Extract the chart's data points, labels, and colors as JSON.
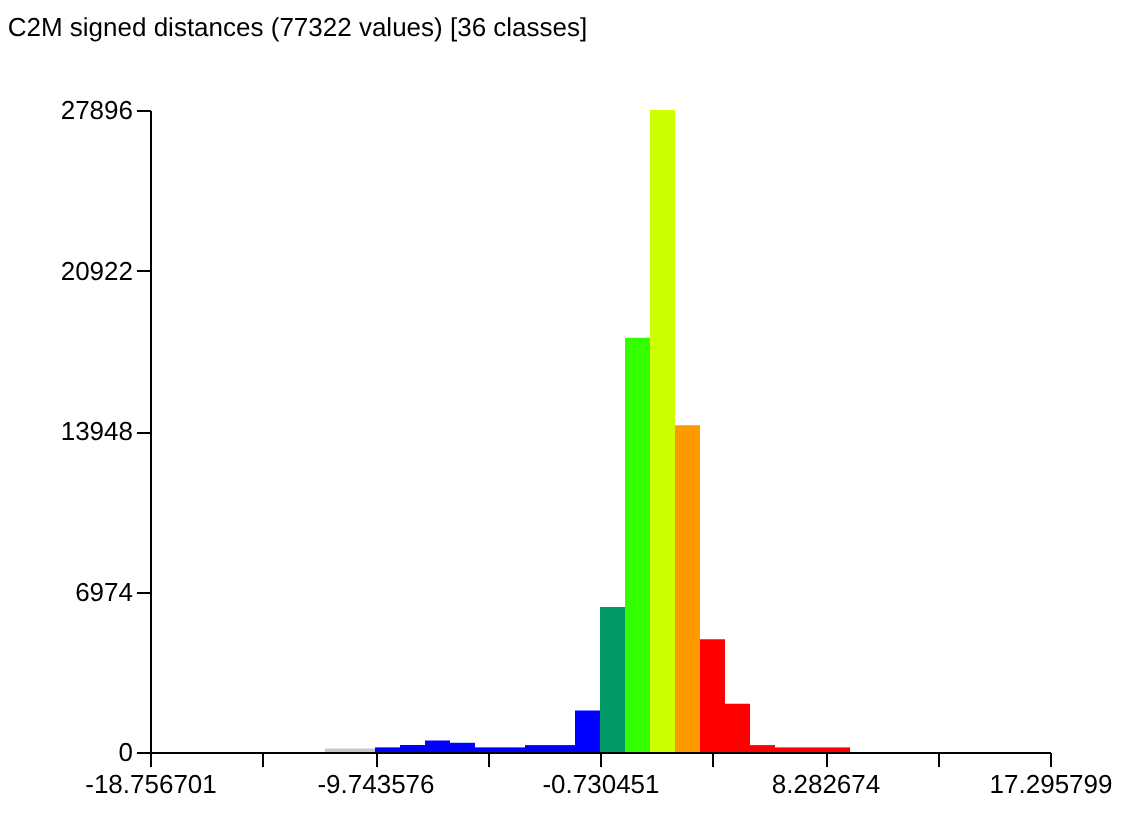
{
  "chart_data": {
    "type": "histogram",
    "title": "C2M signed distances (77322 values)  [36 classes]",
    "bins": [
      -18.756701,
      -17.7552,
      -16.7538,
      -15.7523,
      -14.7508,
      -13.7494,
      -12.7479,
      -11.7465,
      -10.745,
      -9.7436,
      -8.7421,
      -7.7406,
      -6.7392,
      -5.7377,
      -4.7363,
      -3.7348,
      -2.7333,
      -1.7319,
      -0.7305,
      0.271,
      1.2725,
      2.2739,
      3.2754,
      4.2768,
      5.2783,
      6.2798,
      7.2812,
      8.2827,
      9.2841,
      10.2856,
      11.287,
      12.2885,
      13.29,
      14.2914,
      15.2929,
      16.2943,
      17.295799
    ],
    "values": [
      0,
      0,
      0,
      0,
      0,
      0,
      0,
      150,
      150,
      200,
      300,
      500,
      400,
      200,
      200,
      300,
      300,
      1800,
      6300,
      18000,
      27896,
      14200,
      4900,
      2100,
      300,
      200,
      200,
      200,
      0,
      0,
      0,
      0,
      0,
      0,
      0,
      0
    ],
    "colors": [
      "#0000ff",
      "#0000ff",
      "#0000ff",
      "#0000ff",
      "#0000ff",
      "#0000ff",
      "#0000ff",
      "#c8c8c8",
      "#c8c8c8",
      "#0000ff",
      "#0000ff",
      "#0000ff",
      "#0000ff",
      "#0000ff",
      "#0000ff",
      "#0000ff",
      "#0000ff",
      "#0000ff",
      "#009966",
      "#33ff00",
      "#ccff00",
      "#ff9900",
      "#ff0000",
      "#ff0000",
      "#ff0000",
      "#ff0000",
      "#ff0000",
      "#ff0000",
      "#ff0000",
      "#ff0000",
      "#ff0000",
      "#ff0000",
      "#ff0000",
      "#ff0000",
      "#ff0000",
      "#ff0000"
    ],
    "xlim": [
      -18.756701,
      17.295799
    ],
    "xticks": [
      -18.756701,
      {
        "value": -14.250138,
        "label": null
      },
      -9.743576,
      {
        "value": -5.237014,
        "label": null
      },
      -0.730451,
      {
        "value": 3.776111,
        "label": null
      },
      8.282674,
      {
        "value": 12.789236,
        "label": null
      },
      17.295799
    ],
    "ylim": [
      0,
      27896
    ],
    "yticks": [
      0,
      6974,
      13948,
      20922,
      27896
    ]
  }
}
